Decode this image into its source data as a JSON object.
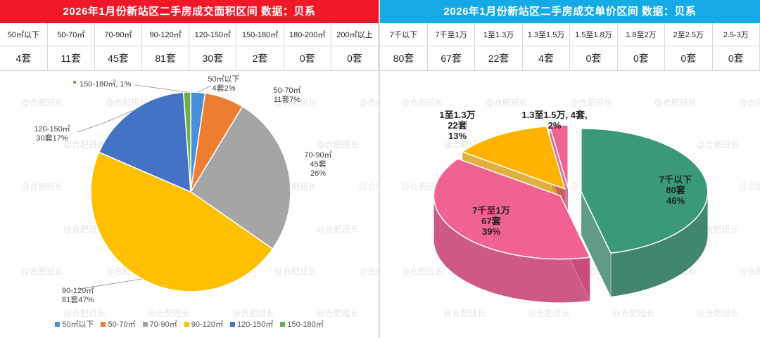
{
  "left": {
    "title": "2026年1月份新站区二手房成交面积区间 数据：贝系",
    "headers": [
      "50㎡以下",
      "50-70㎡",
      "70-90㎡",
      "90-120㎡",
      "120-150㎡",
      "150-180㎡",
      "180-200㎡",
      "200㎡以上"
    ],
    "values": [
      "4套",
      "11套",
      "45套",
      "81套",
      "30套",
      "2套",
      "0套",
      "0套"
    ]
  },
  "right": {
    "title": "2026年1月份新站区二手房成交单价区间 数据：贝系",
    "headers": [
      "7千以下",
      "7千至1万",
      "1至1.3万",
      "1.3至1.5万",
      "1.5至1.8万",
      "1.8至2万",
      "2至2.5万",
      "2.5-3万"
    ],
    "values": [
      "80套",
      "67套",
      "22套",
      "4套",
      "0套",
      "0套",
      "0套",
      "0套"
    ]
  },
  "watermark": "@合肥班长",
  "chart_data": [
    {
      "type": "pie",
      "categories": [
        "50㎡以下",
        "50-70㎡",
        "70-90㎡",
        "90-120㎡",
        "120-150㎡",
        "150-180㎡"
      ],
      "values": [
        4,
        11,
        45,
        81,
        30,
        2
      ],
      "colors": [
        "#4a90d9",
        "#ed7d31",
        "#a5a5a5",
        "#ffc000",
        "#4472c4",
        "#70ad47"
      ],
      "data_labels": [
        [
          "50㎡以下",
          "4套2%"
        ],
        [
          "50-70㎡",
          "11套7%"
        ],
        [
          "70-90㎡",
          "45套",
          "26%"
        ],
        [
          "90-120㎡",
          "81套47%"
        ],
        [
          "120-150㎡",
          "30套17%"
        ],
        [
          "150-180㎡, 1%"
        ]
      ],
      "legend": [
        "50㎡以下",
        "50-70㎡",
        "70-90㎡",
        "90-120㎡",
        "120-150㎡",
        "150-180㎡"
      ],
      "legend_position": "bottom"
    },
    {
      "type": "pie",
      "style": "3d-exploded",
      "categories": [
        "7千以下",
        "7千至1万",
        "1至1.3万",
        "1.3至1.5万"
      ],
      "values": [
        80,
        67,
        22,
        4
      ],
      "colors": [
        "#3a9a78",
        "#f06292",
        "#ffb300",
        "#f06292"
      ],
      "data_labels": [
        [
          "7千以下",
          "80套",
          "46%"
        ],
        [
          "7千至1万",
          "67套",
          "39%"
        ],
        [
          "1至1.3万",
          "22套",
          "13%"
        ],
        [
          "1.3至1.5万, 4套,",
          "2%"
        ]
      ]
    }
  ]
}
